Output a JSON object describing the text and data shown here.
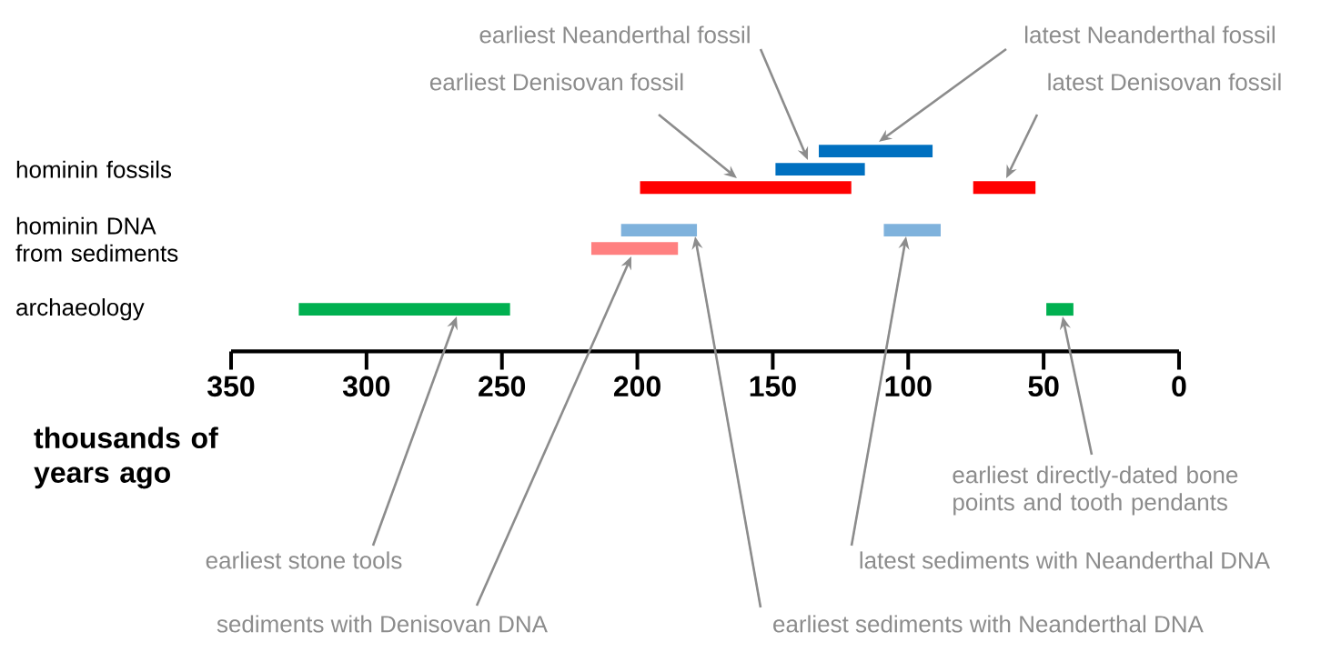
{
  "chart_data": {
    "type": "bar",
    "orientation": "horizontal",
    "xlabel": "thousands of years ago",
    "categories": [
      "hominin fossils",
      "hominin DNA from sediments",
      "archaeology"
    ],
    "xlim": [
      350,
      0
    ],
    "xticks": [
      350,
      300,
      250,
      200,
      150,
      100,
      50,
      0
    ],
    "series": [
      {
        "color": "#0070c0",
        "base": [
          91,
          null,
          null
        ],
        "values": [
          42,
          null,
          null
        ]
      },
      {
        "color": "#0070c0",
        "base": [
          116,
          null,
          null
        ],
        "values": [
          33,
          null,
          null
        ]
      },
      {
        "color": "#ff0000",
        "base": [
          121,
          null,
          null
        ],
        "values": [
          78,
          null,
          null
        ]
      },
      {
        "color": "#ff0000",
        "base": [
          53,
          null,
          null
        ],
        "values": [
          23,
          null,
          null
        ]
      },
      {
        "color": "#7fb2dc",
        "base": [
          null,
          178,
          null
        ],
        "values": [
          null,
          28,
          null
        ]
      },
      {
        "color": "#7fb2dc",
        "base": [
          null,
          88,
          null
        ],
        "values": [
          null,
          21,
          null
        ]
      },
      {
        "color": "#ff8080",
        "base": [
          null,
          185,
          null
        ],
        "values": [
          null,
          32,
          null
        ]
      },
      {
        "color": "#00b050",
        "base": [
          null,
          null,
          247
        ],
        "values": [
          null,
          null,
          78
        ]
      },
      {
        "color": "#00b050",
        "base": [
          null,
          null,
          39
        ],
        "values": [
          null,
          null,
          10
        ]
      }
    ],
    "annotations": [
      "earliest Neanderthal fossil",
      "latest Neanderthal fossil",
      "earliest Denisovan fossil",
      "latest Denisovan fossil",
      "earliest stone tools",
      "sediments with Denisovan DNA",
      "earliest sediments with Neanderthal DNA",
      "latest sediments with Neanderthal DNA",
      "earliest directly-dated bone points and tooth pendants"
    ]
  }
}
